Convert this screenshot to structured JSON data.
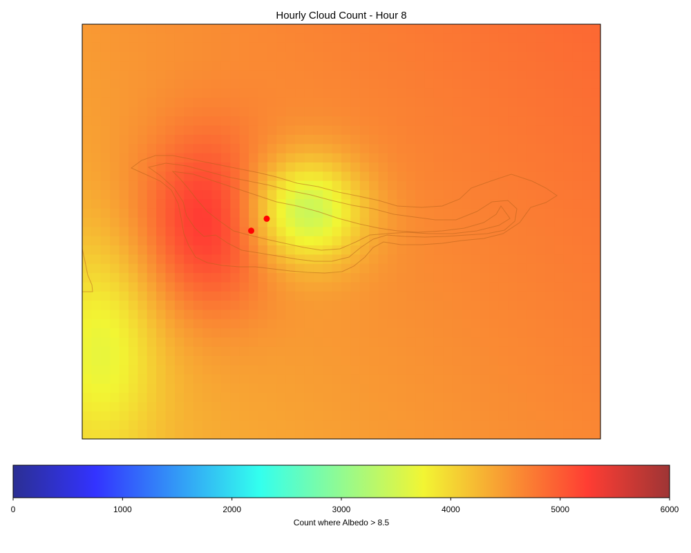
{
  "chart_data": {
    "type": "heatmap",
    "title": "Hourly Cloud Count - Hour 8",
    "grid": false,
    "grid_shape": [
      45,
      56
    ],
    "colormap": "jet",
    "colorbar": {
      "label": "Count where Albedo > 8.5",
      "range": [
        0,
        6000
      ],
      "ticks": [
        "0",
        "1000",
        "2000",
        "3000",
        "4000",
        "5000",
        "6000"
      ],
      "placement": "bottom"
    },
    "field_features": [
      {
        "kind": "background",
        "value": 4500
      },
      {
        "kind": "maximum",
        "value": 5350,
        "nx": 0.24,
        "ny": 0.48,
        "sx": 0.09,
        "sy": 0.15
      },
      {
        "kind": "minimum",
        "value": 3300,
        "nx": 0.43,
        "ny": 0.45,
        "sx": 0.08,
        "sy": 0.09
      },
      {
        "kind": "minimum",
        "value": 3850,
        "nx": 0.04,
        "ny": 0.78,
        "sx": 0.08,
        "sy": 0.18
      }
    ],
    "contours": [
      {
        "name": "outer",
        "color": "#b8621b"
      },
      {
        "name": "mid",
        "color": "#b8621b"
      },
      {
        "name": "inner",
        "color": "#b8621b"
      }
    ],
    "markers": [
      {
        "name": "site-1",
        "nx": 0.326,
        "ny": 0.498,
        "color": "#ff0000"
      },
      {
        "name": "site-2",
        "nx": 0.356,
        "ny": 0.469,
        "color": "#ff0000"
      }
    ]
  }
}
